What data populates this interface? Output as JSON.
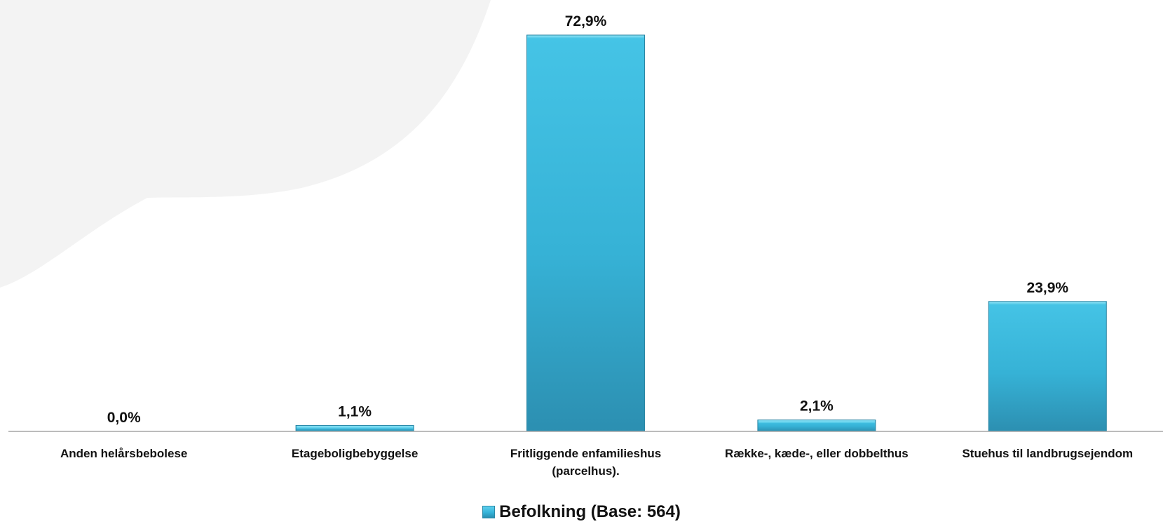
{
  "chart_data": {
    "type": "bar",
    "categories": [
      "Anden helårsbebolese",
      "Etageboligbebyggelse",
      "Fritliggende enfamilieshus (parcelhus).",
      "Række-, kæde-, eller dobbelthus",
      "Stuehus til landbrugsejendom"
    ],
    "category_lines": [
      [
        "Anden helårsbebolese"
      ],
      [
        "Etageboligbebyggelse"
      ],
      [
        "Fritliggende enfamilieshus",
        "(parcelhus)."
      ],
      [
        "Række-, kæde-, eller dobbelthus"
      ],
      [
        "Stuehus til landbrugsejendom"
      ]
    ],
    "series": [
      {
        "name": "Befolkning (Base: 564)",
        "values": [
          0.0,
          1.1,
          72.9,
          2.1,
          23.9
        ],
        "labels": [
          "0,0%",
          "1,1%",
          "72,9%",
          "2,1%",
          "23,9%"
        ],
        "color": "#3bbde0"
      }
    ],
    "ylim": [
      0,
      72.9
    ],
    "grid": false,
    "legend_position": "bottom"
  }
}
